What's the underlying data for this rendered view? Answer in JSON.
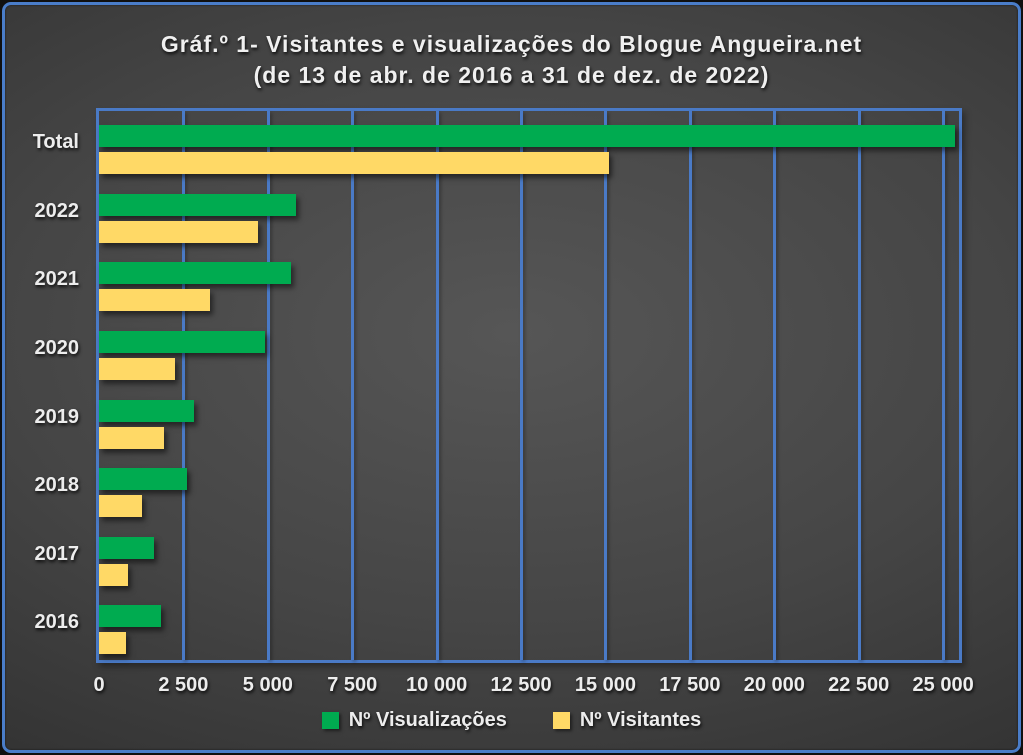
{
  "title": {
    "line1": "Gráf.º 1- Visitantes e visualizações do Blogue Angueira.net",
    "line2": "(de 13 de abr. de 2016 a 31 de dez. de 2022)"
  },
  "chart_data": {
    "type": "bar",
    "orientation": "horizontal",
    "title": "Gráf.º 1- Visitantes e visualizações do Blogue Angueira.net (de 13 de abr. de 2016 a 31 de dez. de 2022)",
    "categories": [
      "Total",
      "2022",
      "2021",
      "2020",
      "2019",
      "2018",
      "2017",
      "2016"
    ],
    "series": [
      {
        "name": "Nº Visualizações",
        "color": "#00ab50",
        "values": [
          25350,
          5830,
          5690,
          4920,
          2820,
          2620,
          1640,
          1830
        ]
      },
      {
        "name": "Nº Visitantes",
        "color": "#ffd966",
        "values": [
          15100,
          4700,
          3300,
          2240,
          1930,
          1270,
          850,
          800
        ]
      }
    ],
    "xlim": [
      0,
      25470
    ],
    "x_ticks": [
      {
        "value": 0,
        "label": "0"
      },
      {
        "value": 2500,
        "label": "2 500"
      },
      {
        "value": 5000,
        "label": "5 000"
      },
      {
        "value": 7500,
        "label": "7 500"
      },
      {
        "value": 10000,
        "label": "10 000"
      },
      {
        "value": 12500,
        "label": "12 500"
      },
      {
        "value": 15000,
        "label": "15 000"
      },
      {
        "value": 17500,
        "label": "17 500"
      },
      {
        "value": 20000,
        "label": "20 000"
      },
      {
        "value": 22500,
        "label": "22 500"
      },
      {
        "value": 25000,
        "label": "25 000"
      }
    ],
    "grid": true,
    "legend_position": "bottom"
  },
  "colors": {
    "grid_blue": "#4a7ac6",
    "frame_blue": "#4a7dc9",
    "views_green": "#00ab50",
    "visitors_yellow": "#ffd966",
    "text": "#ededed",
    "background_center": "#565656",
    "background_edge": "#272727"
  }
}
